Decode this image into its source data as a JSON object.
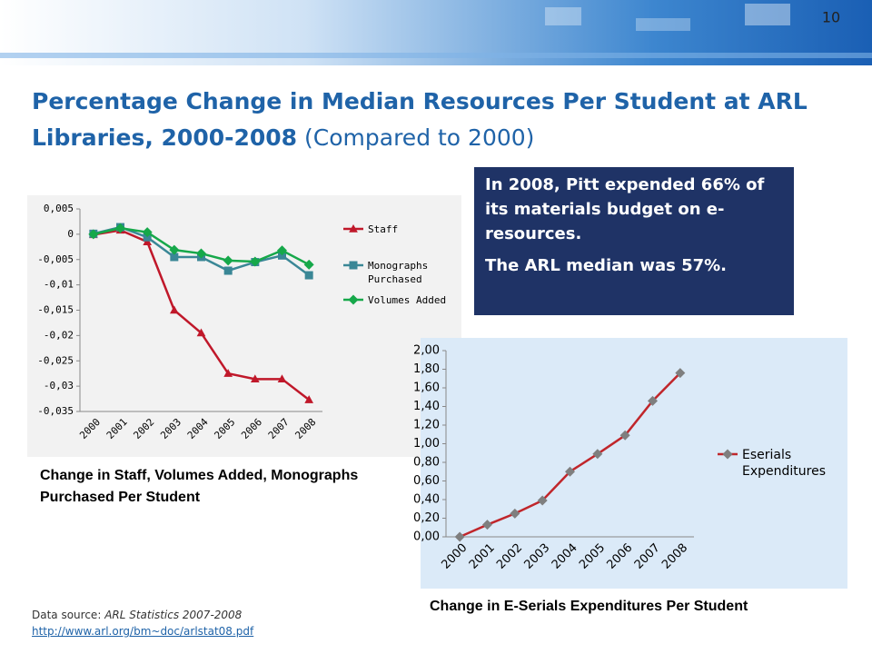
{
  "slide_number": "10",
  "title": {
    "main": "Percentage Change in Median Resources Per Student at ARL Libraries, 2000-2008",
    "note": "(Compared to 2000)"
  },
  "callout": [
    "In 2008, Pitt expended 66% of its materials budget on e-resources.",
    "The ARL median was 57%."
  ],
  "source": {
    "label": "Data source:",
    "citation": "ARL Statistics 2007-2008",
    "url": "http://www.arl.org/bm~doc/arlstat08.pdf"
  },
  "chart_data": [
    {
      "type": "line",
      "caption": "Change in Staff, Volumes Added, Monographs Purchased Per Student",
      "categories": [
        "2000",
        "2001",
        "2002",
        "2003",
        "2004",
        "2005",
        "2006",
        "2007",
        "2008"
      ],
      "series": [
        {
          "name": "Staff",
          "color": "#c0182a",
          "marker": "triangle",
          "values": [
            -0.0001,
            0.0008,
            -0.0015,
            -0.015,
            -0.0195,
            -0.0275,
            -0.0286,
            -0.0286,
            -0.0327
          ]
        },
        {
          "name": "Monographs Purchased",
          "color": "#3a8796",
          "marker": "square",
          "values": [
            0.0001,
            0.0014,
            -0.0006,
            -0.0045,
            -0.0045,
            -0.0072,
            -0.0055,
            -0.0042,
            -0.0081
          ]
        },
        {
          "name": "Volumes Added",
          "color": "#16a84a",
          "marker": "diamond",
          "values": [
            0,
            0.0012,
            0.0004,
            -0.0031,
            -0.0038,
            -0.0052,
            -0.0054,
            -0.0032,
            -0.006
          ]
        }
      ],
      "ylim": [
        -0.035,
        0.005
      ],
      "yticks": [
        {
          "value": 0.005,
          "label": "0,005"
        },
        0,
        {
          "value": -0.005,
          "label": "-0,005"
        },
        {
          "value": -0.01,
          "label": "-0,01"
        },
        {
          "value": -0.015,
          "label": "-0,015"
        },
        {
          "value": -0.02,
          "label": "-0,02"
        },
        {
          "value": -0.025,
          "label": "-0,025"
        },
        {
          "value": -0.03,
          "label": "-0,03"
        },
        {
          "value": -0.035,
          "label": "-0,035"
        }
      ],
      "grid": false,
      "legend": "right"
    },
    {
      "type": "line",
      "caption": "Change in E-Serials Expenditures Per Student",
      "categories": [
        "2000",
        "2001",
        "2002",
        "2003",
        "2004",
        "2005",
        "2006",
        "2007",
        "2008"
      ],
      "series": [
        {
          "name": "Eserials Expenditures",
          "color": "#c0262b",
          "marker": "diamond",
          "marker_color": "#7f7f7f",
          "values": [
            0,
            0.13,
            0.25,
            0.39,
            0.7,
            0.89,
            1.09,
            1.46,
            1.76
          ]
        }
      ],
      "ylim": [
        0,
        2
      ],
      "yticks": [
        {
          "value": 2,
          "label": "2,00"
        },
        {
          "value": 1.8,
          "label": "1,80"
        },
        {
          "value": 1.6,
          "label": "1,60"
        },
        {
          "value": 1.4,
          "label": "1,40"
        },
        {
          "value": 1.2,
          "label": "1,20"
        },
        {
          "value": 1,
          "label": "1,00"
        },
        {
          "value": 0.8,
          "label": "0,80"
        },
        {
          "value": 0.6,
          "label": "0,60"
        },
        {
          "value": 0.4,
          "label": "0,40"
        },
        {
          "value": 0.2,
          "label": "0,20"
        },
        {
          "value": 0,
          "label": "0,00"
        }
      ],
      "grid": false,
      "legend": "right"
    }
  ]
}
